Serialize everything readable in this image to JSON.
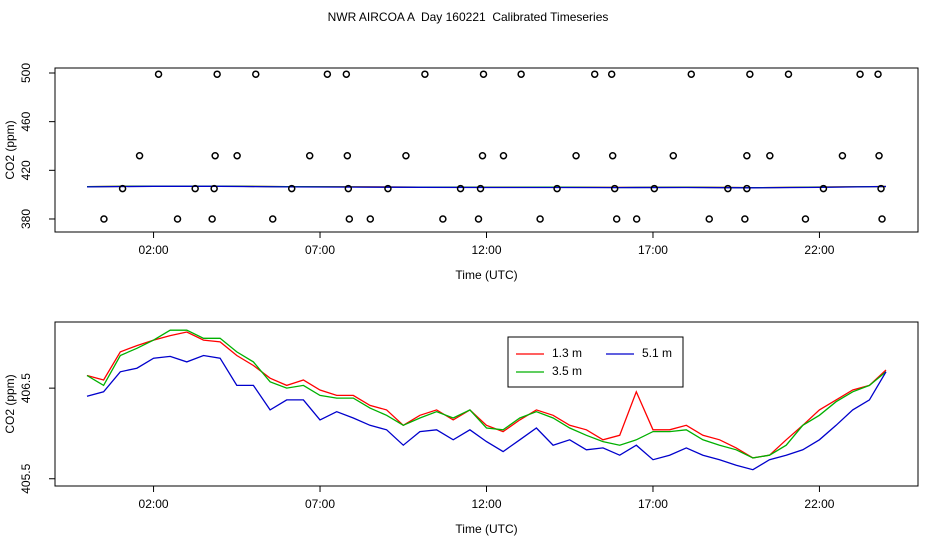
{
  "chart_data": [
    {
      "type": "scatter",
      "title": "NWR AIRCOA A  Day 160221  Calibrated Timeseries",
      "x_label": "Time (UTC)",
      "y_label": "CO2 (ppm)",
      "xlim": [
        -0.96,
        24.96
      ],
      "ylim": [
        369.3,
        504.1
      ],
      "xticks": [
        {
          "value": 2,
          "label": "02:00"
        },
        {
          "value": 7,
          "label": "07:00"
        },
        {
          "value": 12,
          "label": "12:00"
        },
        {
          "value": 17,
          "label": "17:00"
        },
        {
          "value": 22,
          "label": "22:00"
        }
      ],
      "yticks": [
        380,
        420,
        460,
        500
      ],
      "points": {
        "color": "#000000",
        "x": [
          2.15,
          3.91,
          5.07,
          7.22,
          7.79,
          10.15,
          11.91,
          13.04,
          15.25,
          15.76,
          18.15,
          19.91,
          21.07,
          23.22,
          23.76,
          1.58,
          3.85,
          4.51,
          6.69,
          7.82,
          9.58,
          11.88,
          12.51,
          14.69,
          15.79,
          17.61,
          19.82,
          20.51,
          22.69,
          23.79,
          1.07,
          3.25,
          3.82,
          6.15,
          7.85,
          9.04,
          11.22,
          11.82,
          14.12,
          15.85,
          17.04,
          19.25,
          19.82,
          22.12,
          23.85,
          0.51,
          2.72,
          3.76,
          5.58,
          7.88,
          8.51,
          10.69,
          11.76,
          13.61,
          15.91,
          16.51,
          18.69,
          19.76,
          21.58,
          23.88
        ],
        "values": [
          499,
          499,
          499,
          499,
          499,
          499,
          499,
          499,
          499,
          499,
          499,
          499,
          499,
          499,
          499,
          432,
          432,
          432,
          432,
          432,
          432,
          432,
          432,
          432,
          432,
          432,
          432,
          432,
          432,
          432,
          405,
          405,
          405,
          405,
          405,
          405,
          405,
          405,
          405,
          405,
          405,
          405,
          405,
          405,
          405,
          380,
          380,
          380,
          380,
          380,
          380,
          380,
          380,
          380,
          380,
          380,
          380,
          380,
          380,
          380
        ]
      },
      "lines": [
        {
          "color": "#ff0000",
          "x": [
            0,
            2,
            4,
            6,
            8,
            10,
            12,
            14,
            16,
            18,
            20,
            22,
            24
          ],
          "values": [
            406.64,
            407.03,
            407.01,
            406.53,
            406.42,
            406.2,
            406.09,
            406.2,
            405.98,
            406.09,
            405.73,
            406.26,
            406.7
          ]
        },
        {
          "color": "#00b000",
          "x": [
            0,
            2,
            4,
            6,
            8,
            10,
            12,
            14,
            16,
            18,
            20,
            22,
            24
          ],
          "values": [
            406.64,
            407.03,
            407.05,
            406.5,
            406.39,
            406.17,
            406.06,
            406.17,
            405.87,
            406.04,
            405.73,
            406.2,
            406.68
          ]
        },
        {
          "color": "#0000cc",
          "x": [
            0,
            2,
            4,
            6,
            8,
            10,
            12,
            14,
            16,
            18,
            20,
            22,
            24
          ],
          "values": [
            406.41,
            406.83,
            406.83,
            406.37,
            406.17,
            406.02,
            405.91,
            405.87,
            405.76,
            405.84,
            405.6,
            405.93,
            406.68
          ]
        }
      ]
    },
    {
      "type": "line",
      "x_label": "Time (UTC)",
      "y_label": "CO2 (ppm)",
      "xlim": [
        -0.96,
        24.96
      ],
      "ylim": [
        405.42,
        407.23
      ],
      "xticks": [
        {
          "value": 2,
          "label": "02:00"
        },
        {
          "value": 7,
          "label": "07:00"
        },
        {
          "value": 12,
          "label": "12:00"
        },
        {
          "value": 17,
          "label": "17:00"
        },
        {
          "value": 22,
          "label": "22:00"
        }
      ],
      "yticks": [
        405.5,
        406.5
      ],
      "x": [
        0,
        0.5,
        1,
        1.5,
        2,
        2.5,
        3,
        3.5,
        4,
        4.5,
        5,
        5.5,
        6,
        6.5,
        7,
        7.5,
        8,
        8.5,
        9,
        9.5,
        10,
        10.5,
        11,
        11.5,
        12,
        12.5,
        13,
        13.5,
        14,
        14.5,
        15,
        15.5,
        16,
        16.5,
        17,
        17.5,
        18,
        18.5,
        19,
        19.5,
        20,
        20.5,
        21,
        21.5,
        22,
        22.5,
        23,
        23.5,
        24
      ],
      "series": [
        {
          "name": "1.3 m",
          "color": "#ff0000",
          "values": [
            406.64,
            406.59,
            406.9,
            406.97,
            407.03,
            407.08,
            407.12,
            407.03,
            407.01,
            406.86,
            406.75,
            406.61,
            406.53,
            406.59,
            406.48,
            406.42,
            406.42,
            406.31,
            406.26,
            406.09,
            406.2,
            406.26,
            406.15,
            406.26,
            406.09,
            406.02,
            406.15,
            406.26,
            406.2,
            406.09,
            406.04,
            405.93,
            405.98,
            406.46,
            406.04,
            406.04,
            406.09,
            405.98,
            405.93,
            405.84,
            405.73,
            405.76,
            405.93,
            406.09,
            406.26,
            406.37,
            406.48,
            406.53,
            406.7
          ]
        },
        {
          "name": "3.5 m",
          "color": "#00b000",
          "values": [
            406.64,
            406.53,
            406.86,
            406.94,
            407.03,
            407.14,
            407.14,
            407.05,
            407.05,
            406.9,
            406.79,
            406.57,
            406.5,
            406.53,
            406.42,
            406.39,
            406.39,
            406.28,
            406.2,
            406.09,
            406.17,
            406.24,
            406.17,
            406.26,
            406.06,
            406.04,
            406.17,
            406.24,
            406.17,
            406.06,
            405.98,
            405.91,
            405.87,
            405.93,
            406.02,
            406.02,
            406.04,
            405.93,
            405.87,
            405.82,
            405.73,
            405.76,
            405.87,
            406.09,
            406.2,
            406.35,
            406.46,
            406.53,
            406.68
          ]
        },
        {
          "name": "5.1 m",
          "color": "#0000cc",
          "values": [
            406.41,
            406.46,
            406.68,
            406.72,
            406.83,
            406.85,
            406.79,
            406.86,
            406.83,
            406.53,
            406.53,
            406.26,
            406.37,
            406.37,
            406.15,
            406.24,
            406.17,
            406.09,
            406.04,
            405.87,
            406.02,
            406.04,
            405.93,
            406.04,
            405.91,
            405.8,
            405.93,
            406.06,
            405.87,
            405.93,
            405.82,
            405.84,
            405.76,
            405.87,
            405.71,
            405.76,
            405.84,
            405.76,
            405.71,
            405.65,
            405.6,
            405.71,
            405.76,
            405.82,
            405.93,
            406.09,
            406.26,
            406.37,
            406.68
          ]
        }
      ]
    }
  ]
}
